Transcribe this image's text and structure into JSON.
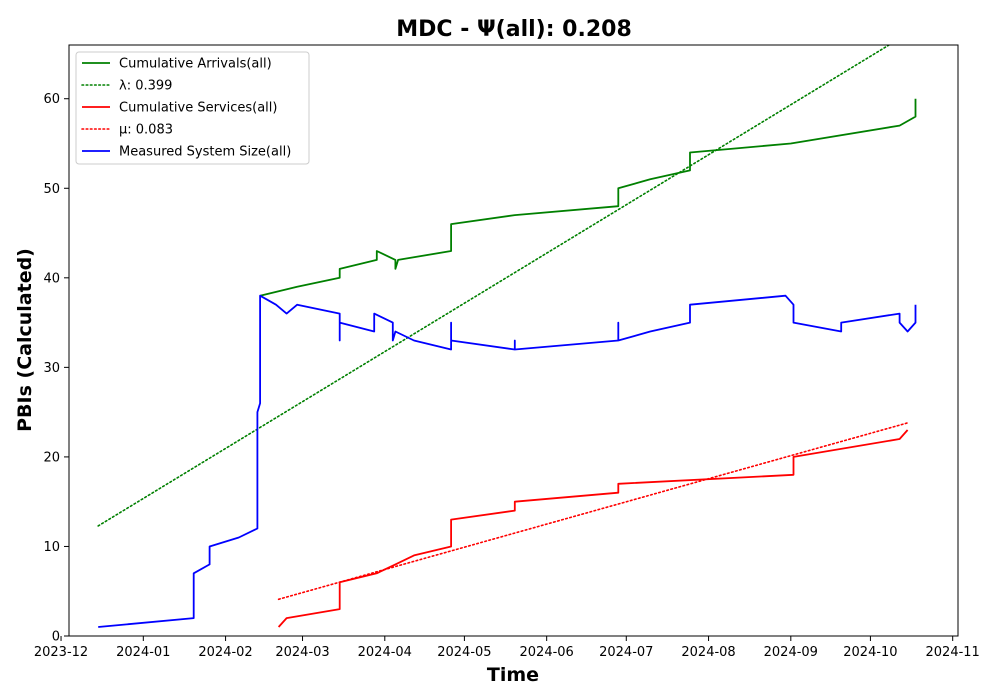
{
  "chart_data": {
    "type": "line",
    "title": "MDC -  Ψ(all): 0.208",
    "xlabel": "Time",
    "ylabel": "PBIs (Calculated)",
    "x_axis_type": "date",
    "xlim": [
      "2023-12-04",
      "2024-11-03"
    ],
    "ylim": [
      0,
      66
    ],
    "x_ticks": [
      "2023-12-01",
      "2024-01-01",
      "2024-02-01",
      "2024-03-01",
      "2024-04-01",
      "2024-05-01",
      "2024-06-01",
      "2024-07-01",
      "2024-08-01",
      "2024-09-01",
      "2024-10-01",
      "2024-11-01"
    ],
    "x_tick_labels": [
      "2023-12",
      "2024-01",
      "2024-02",
      "2024-03",
      "2024-04",
      "2024-05",
      "2024-06",
      "2024-07",
      "2024-08",
      "2024-09",
      "2024-10",
      "2024-11"
    ],
    "y_ticks": [
      0,
      10,
      20,
      30,
      40,
      50,
      60
    ],
    "grid": false,
    "legend_position": "top-left",
    "series": [
      {
        "name": "Cumulative Arrivals(all)",
        "color": "#008000",
        "style": "solid",
        "points": [
          [
            "2024-02-14",
            38
          ],
          [
            "2024-02-28",
            39
          ],
          [
            "2024-03-15",
            40
          ],
          [
            "2024-03-15",
            41
          ],
          [
            "2024-03-29",
            42
          ],
          [
            "2024-03-29",
            43
          ],
          [
            "2024-04-05",
            42
          ],
          [
            "2024-04-05",
            41
          ],
          [
            "2024-04-06",
            42
          ],
          [
            "2024-04-26",
            43
          ],
          [
            "2024-04-26",
            46
          ],
          [
            "2024-05-20",
            47
          ],
          [
            "2024-06-28",
            48
          ],
          [
            "2024-06-28",
            50
          ],
          [
            "2024-07-10",
            51
          ],
          [
            "2024-07-25",
            52
          ],
          [
            "2024-07-25",
            54
          ],
          [
            "2024-09-01",
            55
          ],
          [
            "2024-10-12",
            57
          ],
          [
            "2024-10-18",
            58
          ],
          [
            "2024-10-18",
            60
          ]
        ]
      },
      {
        "name": "λ: 0.399",
        "color": "#008000",
        "style": "dotted",
        "points": [
          [
            "2023-12-15",
            12.3
          ],
          [
            "2024-10-08",
            66
          ]
        ]
      },
      {
        "name": "Cumulative Services(all)",
        "color": "#ff0000",
        "style": "solid",
        "points": [
          [
            "2024-02-21",
            1
          ],
          [
            "2024-02-24",
            2
          ],
          [
            "2024-03-15",
            3
          ],
          [
            "2024-03-15",
            6
          ],
          [
            "2024-03-29",
            7
          ],
          [
            "2024-04-05",
            8
          ],
          [
            "2024-04-12",
            9
          ],
          [
            "2024-04-26",
            10
          ],
          [
            "2024-04-26",
            13
          ],
          [
            "2024-05-20",
            14
          ],
          [
            "2024-05-20",
            15
          ],
          [
            "2024-06-28",
            16
          ],
          [
            "2024-06-28",
            17
          ],
          [
            "2024-09-02",
            18
          ],
          [
            "2024-09-02",
            20
          ],
          [
            "2024-10-12",
            22
          ],
          [
            "2024-10-15",
            23
          ]
        ]
      },
      {
        "name": "μ: 0.083",
        "color": "#ff0000",
        "style": "dotted",
        "points": [
          [
            "2024-02-21",
            4.1
          ],
          [
            "2024-10-15",
            23.8
          ]
        ]
      },
      {
        "name": "Measured System Size(all)",
        "color": "#0000ff",
        "style": "solid",
        "points": [
          [
            "2023-12-15",
            1
          ],
          [
            "2024-01-20",
            2
          ],
          [
            "2024-01-20",
            7
          ],
          [
            "2024-01-26",
            8
          ],
          [
            "2024-01-26",
            10
          ],
          [
            "2024-02-06",
            11
          ],
          [
            "2024-02-13",
            12
          ],
          [
            "2024-02-13",
            25
          ],
          [
            "2024-02-14",
            26
          ],
          [
            "2024-02-14",
            36
          ],
          [
            "2024-02-14",
            38
          ],
          [
            "2024-02-20",
            37
          ],
          [
            "2024-02-24",
            36
          ],
          [
            "2024-02-28",
            37
          ],
          [
            "2024-03-15",
            36
          ],
          [
            "2024-03-15",
            33
          ],
          [
            "2024-03-15",
            35
          ],
          [
            "2024-03-28",
            34
          ],
          [
            "2024-03-28",
            36
          ],
          [
            "2024-04-04",
            35
          ],
          [
            "2024-04-04",
            33
          ],
          [
            "2024-04-05",
            34
          ],
          [
            "2024-04-12",
            33
          ],
          [
            "2024-04-26",
            32
          ],
          [
            "2024-04-26",
            35
          ],
          [
            "2024-04-26",
            33
          ],
          [
            "2024-05-20",
            32
          ],
          [
            "2024-05-20",
            33
          ],
          [
            "2024-05-20",
            32
          ],
          [
            "2024-06-28",
            33
          ],
          [
            "2024-06-28",
            35
          ],
          [
            "2024-06-28",
            33
          ],
          [
            "2024-07-10",
            34
          ],
          [
            "2024-07-25",
            35
          ],
          [
            "2024-07-25",
            37
          ],
          [
            "2024-08-30",
            38
          ],
          [
            "2024-09-02",
            37
          ],
          [
            "2024-09-02",
            35
          ],
          [
            "2024-09-20",
            34
          ],
          [
            "2024-09-20",
            35
          ],
          [
            "2024-10-12",
            36
          ],
          [
            "2024-10-12",
            35
          ],
          [
            "2024-10-15",
            34
          ],
          [
            "2024-10-18",
            35
          ],
          [
            "2024-10-18",
            37
          ]
        ]
      }
    ]
  }
}
